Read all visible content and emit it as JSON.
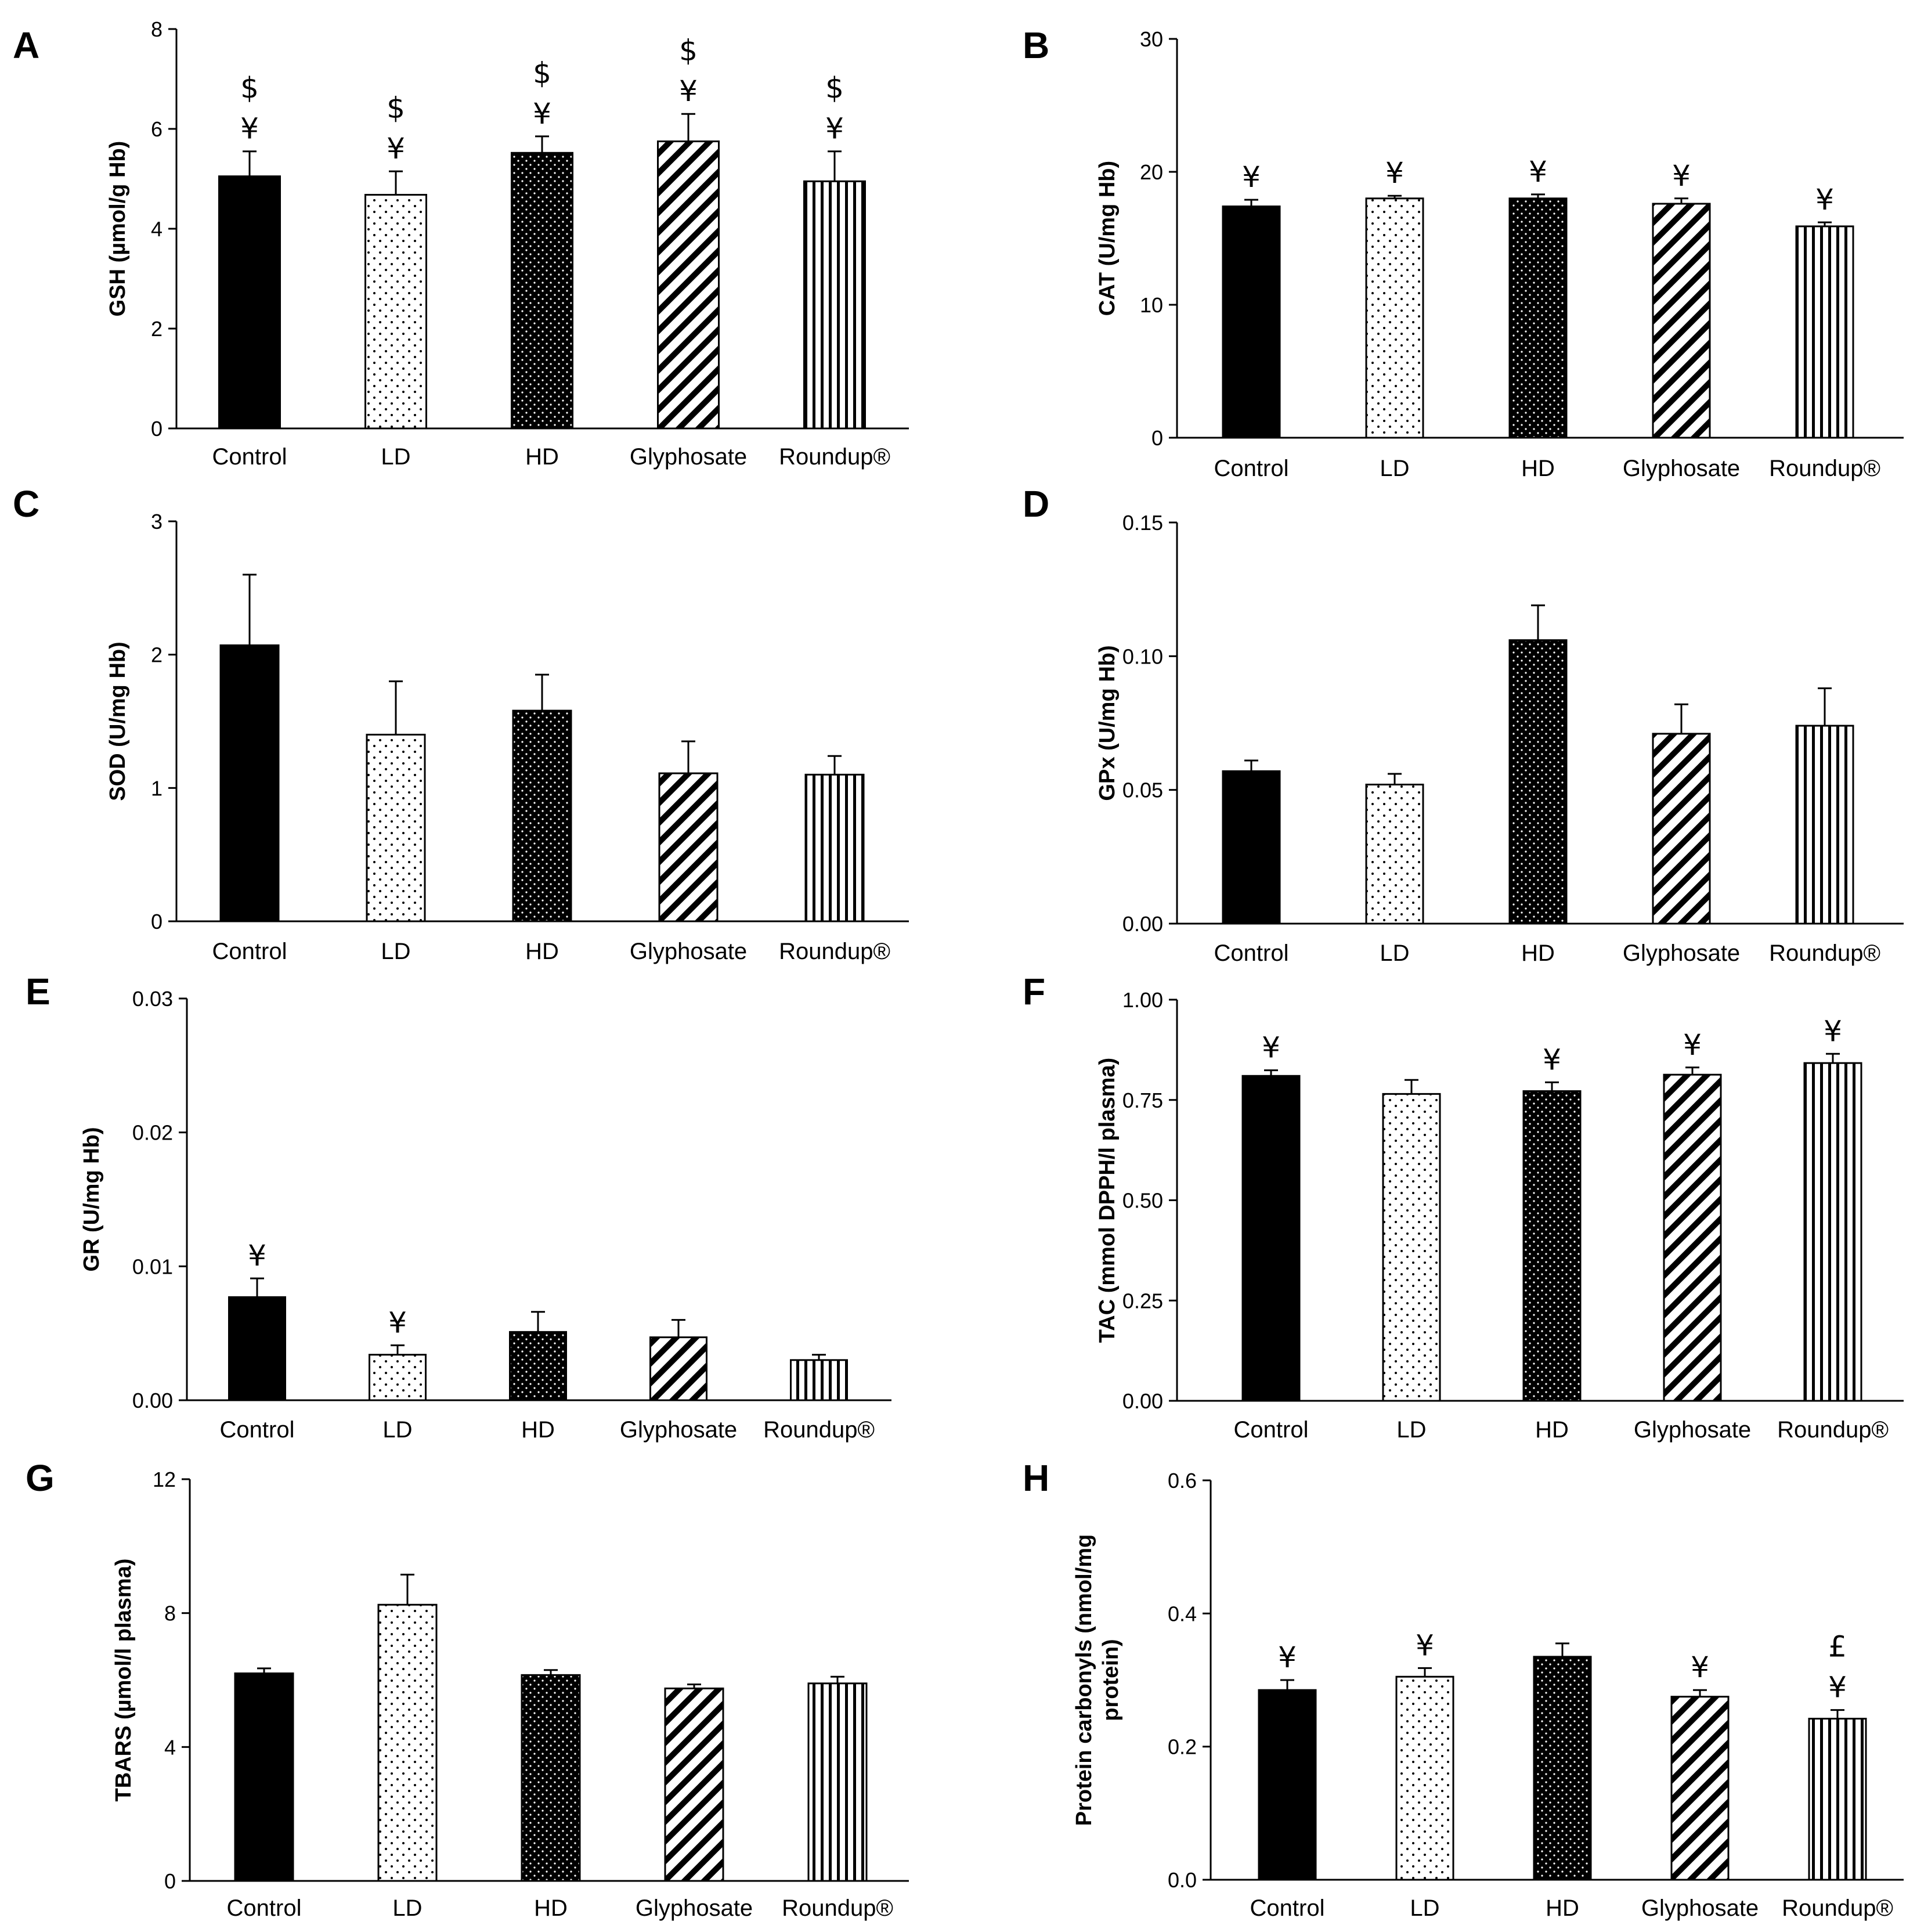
{
  "figure": {
    "categories": [
      "Control",
      "LD",
      "HD",
      "Glyphosate",
      "Roundup®"
    ],
    "patterns": [
      "solid",
      "sparse-dots",
      "dense-dots",
      "diagonal-hatch",
      "vertical-hatch"
    ],
    "colors": {
      "bar_fill": "#000000",
      "bar_background": "#ffffff",
      "axis": "#000000"
    }
  },
  "chart_data": [
    {
      "panel": "A",
      "type": "bar",
      "ylabel": "GSH (µmol/g Hb)",
      "ylim": [
        0,
        8
      ],
      "yticks": [
        0,
        2,
        4,
        6,
        8
      ],
      "ytick_labels": [
        "0",
        "2",
        "4",
        "6",
        "8"
      ],
      "values": [
        5.05,
        4.68,
        5.52,
        5.75,
        4.95
      ],
      "errors": [
        0.5,
        0.47,
        0.33,
        0.55,
        0.6
      ],
      "markers": [
        [
          "¥",
          "$"
        ],
        [
          "¥",
          "$"
        ],
        [
          "¥",
          "$"
        ],
        [
          "¥",
          "$"
        ],
        [
          "¥",
          "$"
        ]
      ]
    },
    {
      "panel": "B",
      "type": "bar",
      "ylabel": "CAT (U/mg Hb)",
      "ylim": [
        0,
        30
      ],
      "yticks": [
        0,
        10,
        20,
        30
      ],
      "ytick_labels": [
        "0",
        "10",
        "20",
        "30"
      ],
      "values": [
        17.4,
        18.0,
        18.0,
        17.6,
        15.9
      ],
      "errors": [
        0.5,
        0.2,
        0.3,
        0.4,
        0.3
      ],
      "markers": [
        [
          "¥"
        ],
        [
          "¥"
        ],
        [
          "¥"
        ],
        [
          "¥"
        ],
        [
          "¥"
        ]
      ]
    },
    {
      "panel": "C",
      "type": "bar",
      "ylabel": "SOD (U/mg Hb)",
      "ylim": [
        0,
        3
      ],
      "yticks": [
        0,
        1,
        2,
        3
      ],
      "ytick_labels": [
        "0",
        "1",
        "2",
        "3"
      ],
      "values": [
        2.07,
        1.4,
        1.58,
        1.11,
        1.1
      ],
      "errors": [
        0.53,
        0.4,
        0.27,
        0.24,
        0.14
      ],
      "markers": [
        [],
        [],
        [],
        [],
        []
      ]
    },
    {
      "panel": "D",
      "type": "bar",
      "ylabel": "GPx (U/mg Hb)",
      "ylim": [
        0,
        0.15
      ],
      "yticks": [
        0,
        0.05,
        0.1,
        0.15
      ],
      "ytick_labels": [
        "0.00",
        "0.05",
        "0.10",
        "0.15"
      ],
      "values": [
        0.057,
        0.052,
        0.106,
        0.071,
        0.074
      ],
      "errors": [
        0.004,
        0.004,
        0.013,
        0.011,
        0.014
      ],
      "markers": [
        [],
        [],
        [],
        [],
        []
      ]
    },
    {
      "panel": "E",
      "type": "bar",
      "ylabel": "GR (U/mg Hb)",
      "ylim": [
        0,
        0.03
      ],
      "yticks": [
        0,
        0.01,
        0.02,
        0.03
      ],
      "ytick_labels": [
        "0.00",
        "0.01",
        "0.02",
        "0.03"
      ],
      "values": [
        0.0077,
        0.0034,
        0.0051,
        0.0047,
        0.003
      ],
      "errors": [
        0.0014,
        0.0007,
        0.0015,
        0.0013,
        0.0004
      ],
      "markers": [
        [
          "¥"
        ],
        [
          "¥"
        ],
        [],
        [],
        []
      ]
    },
    {
      "panel": "F",
      "type": "bar",
      "ylabel": "TAC (mmol DPPH/l plasma)",
      "ylim": [
        0,
        1
      ],
      "yticks": [
        0,
        0.25,
        0.5,
        0.75,
        1
      ],
      "ytick_labels": [
        "0.00",
        "0.25",
        "0.50",
        "0.75",
        "1.00"
      ],
      "values": [
        0.81,
        0.765,
        0.772,
        0.813,
        0.842
      ],
      "errors": [
        0.014,
        0.035,
        0.022,
        0.018,
        0.023
      ],
      "markers": [
        [
          "¥"
        ],
        [],
        [
          "¥"
        ],
        [
          "¥"
        ],
        [
          "¥"
        ]
      ]
    },
    {
      "panel": "G",
      "type": "bar",
      "ylabel": "TBARS (µmol/l plasma)",
      "ylim": [
        0,
        12
      ],
      "yticks": [
        0,
        4,
        8,
        12
      ],
      "ytick_labels": [
        "0",
        "4",
        "8",
        "12"
      ],
      "values": [
        6.2,
        8.25,
        6.15,
        5.75,
        5.9
      ],
      "errors": [
        0.15,
        0.9,
        0.15,
        0.12,
        0.2
      ],
      "markers": [
        [],
        [],
        [],
        [],
        []
      ]
    },
    {
      "panel": "H",
      "type": "bar",
      "ylabel": "Protein carbonyls (nmol/mg protein)",
      "ylabel_lines": [
        "Protein carbonyls (nmol/mg",
        "protein)"
      ],
      "ylim": [
        0,
        0.6
      ],
      "yticks": [
        0,
        0.2,
        0.4,
        0.6
      ],
      "ytick_labels": [
        "0.0",
        "0.2",
        "0.4",
        "0.6"
      ],
      "values": [
        0.285,
        0.305,
        0.335,
        0.275,
        0.242
      ],
      "errors": [
        0.015,
        0.013,
        0.02,
        0.01,
        0.013
      ],
      "markers": [
        [
          "¥"
        ],
        [
          "¥"
        ],
        [],
        [
          "¥"
        ],
        [
          "¥",
          "£"
        ]
      ]
    }
  ]
}
